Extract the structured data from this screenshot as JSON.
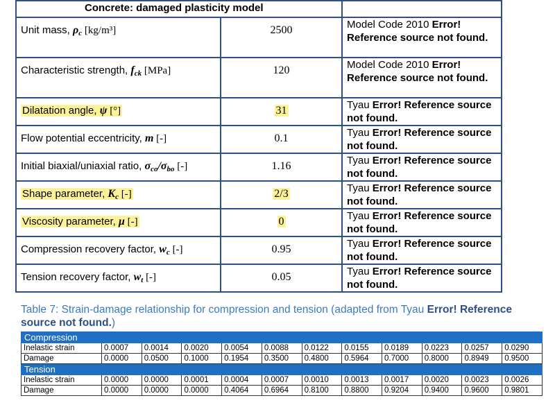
{
  "table1": {
    "header": "Concrete: damaged plasticity model",
    "rows": [
      {
        "label": "Unit mass, ",
        "sym": "ρ",
        "sub": "c",
        "unit": " [kg/m³]",
        "value": "2500",
        "src_pre": "Model Code 2010 ",
        "src_err": "Error! Reference source not found.",
        "hl": false
      },
      {
        "label": "Characteristic strength, ",
        "sym": "f",
        "sub": "ck",
        "unit": " [MPa]",
        "value": "120",
        "src_pre": "Model Code 2010 ",
        "src_err": "Error! Reference source not found.",
        "hl": false
      },
      {
        "label": "Dilatation angle, ",
        "sym": "ψ",
        "sub": "",
        "unit": " [°]",
        "value": "31",
        "src_pre": "Tyau ",
        "src_err": "Error! Reference source not found.",
        "hl": true
      },
      {
        "label": "Flow potential eccentricity, ",
        "sym": "m",
        "sub": "",
        "unit": " [-]",
        "value": "0.1",
        "src_pre": "Tyau ",
        "src_err": "Error! Reference source not found.",
        "hl": false
      },
      {
        "label": "Initial biaxial/uniaxial ratio, ",
        "sym": "σ",
        "sub": "co",
        "sym2": "/σ",
        "sub2": "bo",
        "unit": " [-]",
        "value": "1.16",
        "src_pre": "Tyau ",
        "src_err": "Error! Reference source not found.",
        "hl": false
      },
      {
        "label": "Shape parameter, ",
        "sym": "K",
        "sub": "c",
        "unit": " [-]",
        "value": "2/3",
        "src_pre": "Tyau ",
        "src_err": "Error! Reference source not found.",
        "hl": true
      },
      {
        "label": "Viscosity parameter, ",
        "sym": "μ",
        "sub": "",
        "unit": " [-]",
        "value": "0",
        "src_pre": "Tyau ",
        "src_err": "Error! Reference source not found.",
        "hl": true
      },
      {
        "label": "Compression recovery factor, ",
        "sym": "w",
        "sub": "c",
        "unit": " [-]",
        "value": "0.95",
        "src_pre": "Tyau ",
        "src_err": "Error! Reference source not found.",
        "hl": false
      },
      {
        "label": "Tension recovery factor, ",
        "sym": "w",
        "sub": "t",
        "unit": " [-]",
        "value": "0.05",
        "src_pre": "Tyau ",
        "src_err": "Error! Reference source not found.",
        "hl": false
      }
    ]
  },
  "caption": {
    "text": "Table 7: Strain-damage relationship for compression and tension (adapted from Tyau ",
    "err": "Error! Reference source not found.",
    "tail": ")"
  },
  "table2": {
    "sections": [
      {
        "title": "Compression",
        "rows": [
          {
            "label": "Inelastic strain",
            "values": [
              "0.0007",
              "0.0014",
              "0.0020",
              "0.0054",
              "0.0088",
              "0.0122",
              "0.0155",
              "0.0189",
              "0.0223",
              "0.0257",
              "0.0290"
            ]
          },
          {
            "label": "Damage",
            "values": [
              "0.0000",
              "0.0500",
              "0.1000",
              "0.1954",
              "0.3500",
              "0.4800",
              "0.5964",
              "0.7000",
              "0.8000",
              "0.8949",
              "0.9500"
            ]
          }
        ]
      },
      {
        "title": "Tension",
        "rows": [
          {
            "label": "Inelastic strain",
            "values": [
              "0.0000",
              "0.0000",
              "0.0001",
              "0.0004",
              "0.0007",
              "0.0010",
              "0.0013",
              "0.0017",
              "0.0020",
              "0.0023",
              "0.0026"
            ]
          },
          {
            "label": "Damage",
            "values": [
              "0.0000",
              "0.0000",
              "0.0000",
              "0.4064",
              "0.6964",
              "0.8100",
              "0.8800",
              "0.9204",
              "0.9400",
              "0.9600",
              "0.9801"
            ]
          }
        ]
      }
    ]
  },
  "colors": {
    "border": "#2e4f86",
    "highlight": "#fdf19a",
    "section": "#1f6fc4",
    "caption": "#3a7bbf"
  }
}
